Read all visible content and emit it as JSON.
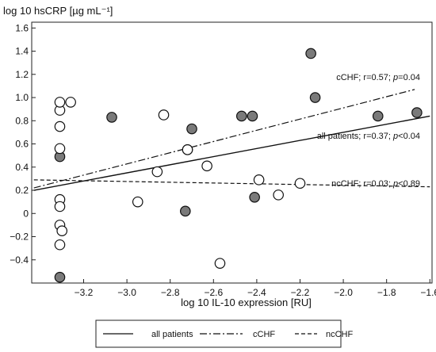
{
  "chart_data": {
    "type": "scatter",
    "title": "",
    "xlabel": "log 10 IL-10 expression [RU]",
    "ylabel": "log 10 hsCRP [µg mL⁻¹]",
    "xlim": [
      -3.44,
      -1.59
    ],
    "ylim": [
      -0.6,
      1.65
    ],
    "x_ticks": [
      -3.2,
      -3.0,
      -2.8,
      -2.6,
      -2.4,
      -2.2,
      -2.0,
      -1.8,
      -1.6
    ],
    "x_tick_labels": [
      "−3.2",
      "−3.0",
      "−2.8",
      "−2.6",
      "−2.4",
      "−2.2",
      "−2.0",
      "−1.8",
      "−1.6"
    ],
    "y_ticks": [
      -0.4,
      -0.2,
      0,
      0.2,
      0.4,
      0.6,
      0.8,
      1.0,
      1.2,
      1.4,
      1.6
    ],
    "y_tick_labels": [
      "−0.4",
      "−0.2",
      "0",
      "0.2",
      "0.4",
      "0.6",
      "0.8",
      "1.0",
      "1.2",
      "1.4",
      "1.6"
    ],
    "grid": false,
    "legend_position": "bottom",
    "series": [
      {
        "name": "cCHF",
        "marker": "filled-circle",
        "color": "#7a7a7a",
        "x": [
          -3.31,
          -3.31,
          -3.07,
          -2.73,
          -2.72,
          -2.7,
          -2.47,
          -2.42,
          -2.41,
          -2.15,
          -2.13,
          -1.84,
          -1.66
        ],
        "y": [
          0.49,
          -0.55,
          0.83,
          0.02,
          0.55,
          0.73,
          0.84,
          0.84,
          0.14,
          1.38,
          1.0,
          0.84,
          0.87
        ]
      },
      {
        "name": "ncCHF",
        "marker": "open-circle",
        "color": "#ffffff",
        "x": [
          -3.31,
          -3.31,
          -3.31,
          -3.31,
          -3.31,
          -3.31,
          -3.3,
          -3.31,
          -3.31,
          -3.26,
          -2.95,
          -2.86,
          -2.83,
          -2.72,
          -2.63,
          -2.57,
          -2.39,
          -2.3,
          -2.2
        ],
        "y": [
          0.89,
          0.75,
          0.56,
          0.12,
          0.06,
          -0.1,
          -0.15,
          -0.27,
          0.96,
          0.96,
          0.1,
          0.36,
          0.85,
          0.55,
          0.41,
          -0.43,
          0.29,
          0.16,
          0.26
        ]
      }
    ],
    "regression_lines": [
      {
        "name": "all patients",
        "style": "solid",
        "x": [
          -3.43,
          -1.6
        ],
        "y": [
          0.2,
          0.84
        ]
      },
      {
        "name": "cCHF",
        "style": "dashdot",
        "x": [
          -3.43,
          -1.67
        ],
        "y": [
          0.22,
          1.07
        ]
      },
      {
        "name": "ncCHF",
        "style": "dashed",
        "x": [
          -3.43,
          -1.6
        ],
        "y": [
          0.29,
          0.23
        ]
      }
    ],
    "annotations": [
      {
        "pre": "cCHF; r=0.57; ",
        "p": "p",
        "post": "=0.04"
      },
      {
        "pre": "all patients; r=0.37; ",
        "p": "p",
        "post": "<0.04"
      },
      {
        "pre": "ncCHF; r=0.03; ",
        "p": "p",
        "post": "<0.89"
      }
    ],
    "legend": [
      {
        "label": "all patients",
        "style": "solid"
      },
      {
        "label": "cCHF",
        "style": "dashdot"
      },
      {
        "label": "ncCHF",
        "style": "dashed"
      }
    ]
  }
}
